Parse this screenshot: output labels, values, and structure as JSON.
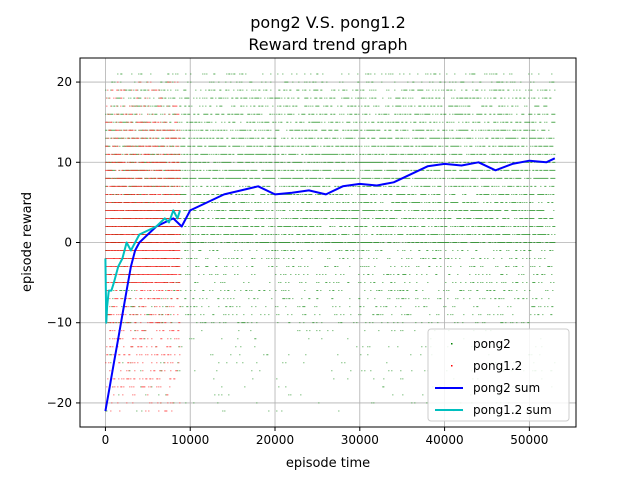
{
  "chart_data": {
    "type": "line",
    "title": "pong2 V.S. pong1.2",
    "subtitle": "Reward trend graph",
    "xlabel": "episode time",
    "ylabel": "episode reward",
    "xlim": [
      -3000,
      55500
    ],
    "ylim": [
      -23,
      23
    ],
    "xticks": [
      0,
      10000,
      20000,
      30000,
      40000,
      50000
    ],
    "yticks": [
      -20,
      -10,
      0,
      10,
      20
    ],
    "grid": true,
    "legend_position": "lower-right",
    "series": [
      {
        "name": "pong2",
        "kind": "scatter",
        "color": "#008000",
        "x_range": [
          0,
          53000
        ],
        "reward_levels": [
          -21,
          -20,
          -19,
          -18,
          -17,
          -16,
          -15,
          -14,
          -13,
          -12,
          -11,
          -10,
          -9,
          -8,
          -7,
          -6,
          -5,
          -4,
          -3,
          -2,
          -1,
          0,
          1,
          2,
          3,
          4,
          5,
          6,
          7,
          8,
          9,
          10,
          11,
          12,
          13,
          14,
          15,
          16,
          17,
          18,
          19,
          20,
          21
        ]
      },
      {
        "name": "pong1.2",
        "kind": "scatter",
        "color": "#ff0000",
        "x_range": [
          0,
          8800
        ],
        "reward_levels": [
          -21,
          -20,
          -19,
          -18,
          -17,
          -16,
          -15,
          -14,
          -13,
          -12,
          -11,
          -10,
          -9,
          -8,
          -7,
          -6,
          -5,
          -4,
          -3,
          -2,
          -1,
          0,
          1,
          2,
          3,
          4,
          5,
          6,
          7,
          8,
          9,
          10,
          11,
          12,
          13,
          14,
          15,
          16,
          17,
          18,
          19,
          20
        ]
      },
      {
        "name": "pong2 sum",
        "kind": "line",
        "color": "#0000ff",
        "x": [
          0,
          500,
          1000,
          1500,
          2000,
          2500,
          3000,
          3500,
          4000,
          5000,
          6000,
          7000,
          8000,
          9000,
          10000,
          12000,
          14000,
          16000,
          18000,
          20000,
          22000,
          24000,
          26000,
          28000,
          30000,
          32000,
          34000,
          36000,
          38000,
          40000,
          42000,
          44000,
          46000,
          48000,
          50000,
          52000,
          53000
        ],
        "y": [
          -21,
          -18,
          -15,
          -12,
          -9,
          -6,
          -3,
          -1,
          0,
          1,
          2,
          2.5,
          3,
          2,
          4,
          5,
          6,
          6.5,
          7,
          6,
          6.2,
          6.5,
          6,
          7,
          7.3,
          7.1,
          7.5,
          8.5,
          9.5,
          9.8,
          9.6,
          10,
          9,
          9.8,
          10.2,
          10,
          10.5
        ]
      },
      {
        "name": "pong1.2 sum",
        "kind": "line",
        "color": "#00bfbf",
        "x": [
          0,
          100,
          200,
          400,
          700,
          1000,
          1500,
          2000,
          2500,
          3000,
          3500,
          4000,
          5000,
          6000,
          7000,
          7500,
          8000,
          8500,
          8800
        ],
        "y": [
          -2,
          -10,
          -8,
          -6,
          -6,
          -5,
          -3,
          -2,
          0,
          -1,
          0,
          1,
          1.5,
          2,
          3,
          2.5,
          4,
          3,
          4
        ]
      }
    ]
  }
}
